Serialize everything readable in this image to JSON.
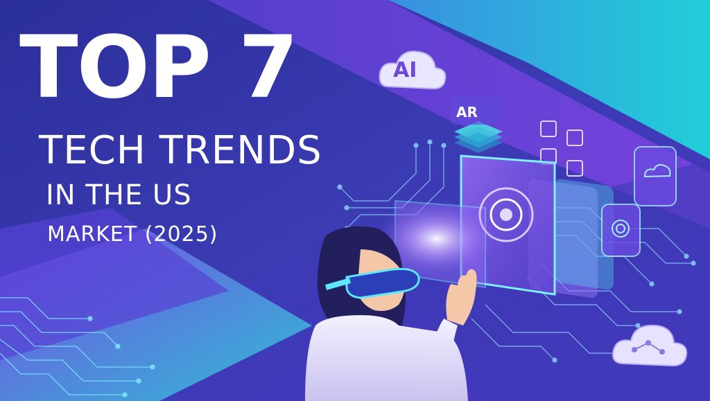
{
  "title": {
    "top": "TOP 7",
    "line2": "TECH TRENDS",
    "line3": "IN THE US",
    "line4": "MARKET (2025)"
  },
  "badges": {
    "ai": "AI",
    "ar": "AR"
  },
  "colors": {
    "bg_dark": "#2a2a8e",
    "bg_purple": "#6b3fd6",
    "bg_teal": "#1fc3d3",
    "text": "#ffffff",
    "accent_cyan": "#5ee6ff"
  },
  "icons": [
    "cloud-ai-icon",
    "ar-stack-icon",
    "chip-icon",
    "cloud-network-icon",
    "vr-headset-icon",
    "circuit-lines-icon"
  ]
}
